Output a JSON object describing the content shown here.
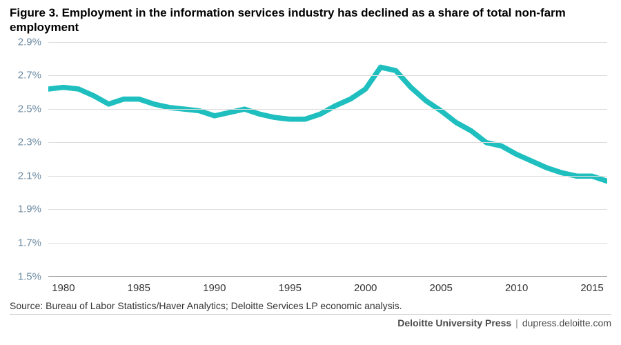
{
  "title": "Figure 3. Employment in the information services industry has declined as a share of total non-farm employment",
  "source": "Source: Bureau of Labor Statistics/Haver Analytics; Deloitte Services LP economic analysis.",
  "footer": {
    "brand": "Deloitte University Press",
    "sep": "|",
    "url": "dupress.deloitte.com"
  },
  "chart": {
    "type": "line",
    "line_color": "#1fbfbf",
    "line_width": 2.5,
    "ytick_color": "#6b8aa2",
    "xtick_color": "#333333",
    "grid_color": "#dddddd",
    "axis_color": "#999999",
    "background_color": "#ffffff",
    "ylim": [
      1.5,
      2.9
    ],
    "yticks": [
      1.5,
      1.7,
      1.9,
      2.1,
      2.3,
      2.5,
      2.7,
      2.9
    ],
    "ytick_labels": [
      "1.5%",
      "1.7%",
      "1.9%",
      "2.1%",
      "2.3%",
      "2.5%",
      "2.7%",
      "2.9%"
    ],
    "xlim": [
      1979,
      2016
    ],
    "xticks": [
      1980,
      1985,
      1990,
      1995,
      2000,
      2005,
      2010,
      2015
    ],
    "xtick_labels": [
      "1980",
      "1985",
      "1990",
      "1995",
      "2000",
      "2005",
      "2010",
      "2015"
    ],
    "label_fontsize": 15,
    "series": {
      "x": [
        1979,
        1980,
        1981,
        1982,
        1983,
        1984,
        1985,
        1986,
        1987,
        1988,
        1989,
        1990,
        1991,
        1992,
        1993,
        1994,
        1995,
        1996,
        1997,
        1998,
        1999,
        2000,
        2001,
        2002,
        2003,
        2004,
        2005,
        2006,
        2007,
        2008,
        2009,
        2010,
        2011,
        2012,
        2013,
        2014,
        2015,
        2016
      ],
      "y": [
        2.62,
        2.63,
        2.62,
        2.58,
        2.53,
        2.56,
        2.56,
        2.53,
        2.51,
        2.5,
        2.49,
        2.46,
        2.48,
        2.5,
        2.47,
        2.45,
        2.44,
        2.44,
        2.47,
        2.52,
        2.56,
        2.62,
        2.75,
        2.73,
        2.63,
        2.55,
        2.49,
        2.42,
        2.37,
        2.3,
        2.28,
        2.23,
        2.19,
        2.15,
        2.12,
        2.1,
        2.1,
        2.07
      ]
    }
  }
}
